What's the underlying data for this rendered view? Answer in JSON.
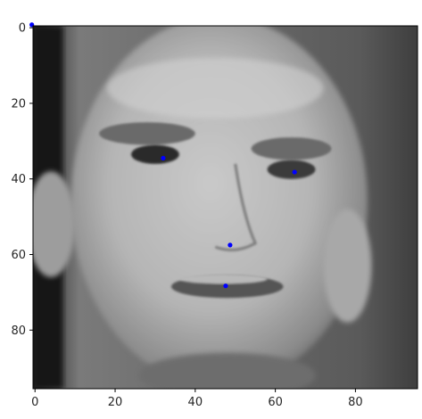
{
  "chart_data": {
    "type": "scatter",
    "background": "grayscale face image",
    "image_extent": {
      "x": [
        0,
        95
      ],
      "y": [
        0,
        95
      ]
    },
    "xlim": [
      -0.5,
      95.5
    ],
    "ylim": [
      95.5,
      -0.5
    ],
    "y_axis_inverted": true,
    "grid": false,
    "legend": "none",
    "marker_color": "#0000ff",
    "x_ticks": [
      0,
      20,
      40,
      60,
      80
    ],
    "y_ticks": [
      0,
      20,
      40,
      60,
      80
    ],
    "x_tick_labels": [
      "0",
      "20",
      "40",
      "60",
      "80"
    ],
    "y_tick_labels": [
      "0",
      "20",
      "40",
      "60",
      "80"
    ],
    "points": [
      {
        "x": -0.8,
        "y": -0.8
      },
      {
        "x": 32.0,
        "y": 34.5
      },
      {
        "x": 64.8,
        "y": 38.2
      },
      {
        "x": 48.7,
        "y": 57.5
      },
      {
        "x": 47.6,
        "y": 68.3
      }
    ]
  }
}
